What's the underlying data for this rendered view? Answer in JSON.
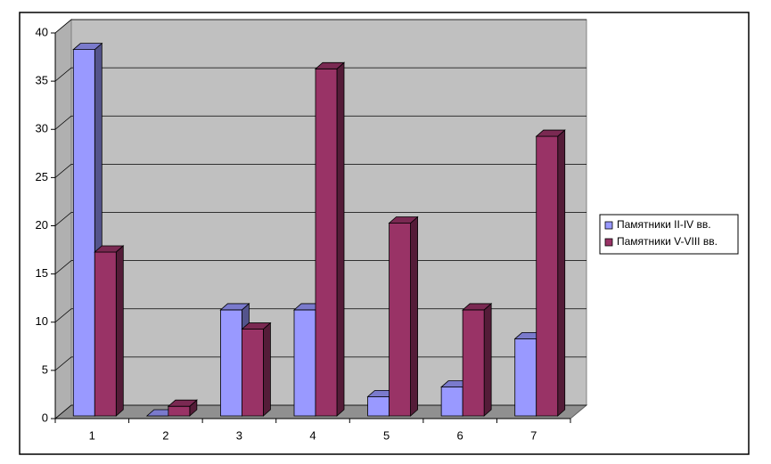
{
  "chart_data": {
    "type": "bar3d",
    "categories": [
      "1",
      "2",
      "3",
      "4",
      "5",
      "6",
      "7"
    ],
    "series": [
      {
        "name": "Памятники II-IV вв.",
        "color": "#9999ff",
        "values": [
          38,
          0,
          11,
          11,
          2,
          3,
          8
        ]
      },
      {
        "name": "Памятники V-VIII вв.",
        "color": "#993366",
        "values": [
          17,
          1,
          9,
          36,
          20,
          11,
          29
        ]
      }
    ],
    "ylim": [
      0,
      40
    ],
    "yticks": [
      0,
      5,
      10,
      15,
      20,
      25,
      30,
      35,
      40
    ],
    "grid": true,
    "legend": "right"
  }
}
